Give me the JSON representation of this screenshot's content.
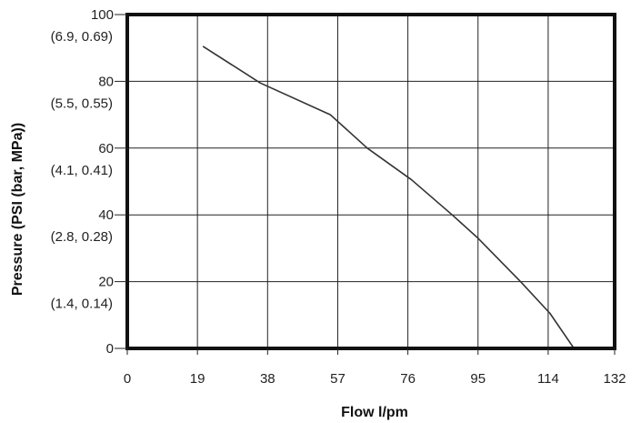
{
  "chart_data": {
    "type": "line",
    "title": "",
    "xlabel": "Flow l/pm",
    "ylabel": "Pressure (PSI (bar, MPa))",
    "xlim": [
      0,
      132
    ],
    "ylim": [
      0,
      100
    ],
    "grid": true,
    "x_ticks": [
      "0",
      "19",
      "38",
      "57",
      "76",
      "95",
      "114",
      "132"
    ],
    "y_ticks": [
      {
        "value": 100,
        "label": "100",
        "sublabel": "(6.9, 0.69)"
      },
      {
        "value": 80,
        "label": "80",
        "sublabel": "(5.5, 0.55)"
      },
      {
        "value": 60,
        "label": "60",
        "sublabel": "(4.1, 0.41)"
      },
      {
        "value": 40,
        "label": "40",
        "sublabel": "(2.8, 0.28)"
      },
      {
        "value": 20,
        "label": "20",
        "sublabel": "(1.4, 0.14)"
      },
      {
        "value": 0,
        "label": "0",
        "sublabel": ""
      }
    ],
    "series": [
      {
        "x": [
          20.5,
          36,
          55,
          65,
          77,
          88,
          95,
          106.5,
          114.5,
          121
        ],
        "y": [
          90.5,
          79.5,
          70,
          60,
          50.5,
          40,
          33,
          20,
          10.5,
          0
        ]
      }
    ],
    "colors": {
      "line": "#333333",
      "frame": "#111111",
      "grid": "#222222"
    }
  }
}
